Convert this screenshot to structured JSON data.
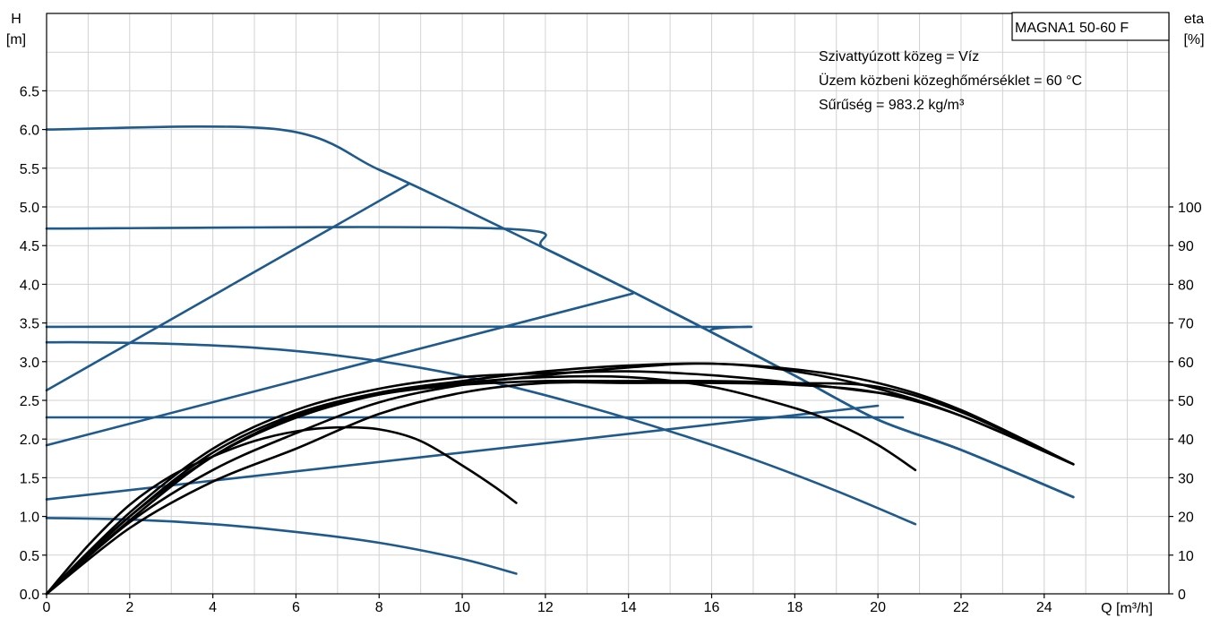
{
  "chart_data": {
    "type": "line",
    "title": "MAGNA1 50-60 F",
    "annotations": [
      "Szivattyúzott közeg = Víz",
      "Üzem közbeni közeghőmérséklet = 60 °C",
      "Sűrűség = 983.2 kg/m³"
    ],
    "x_axis": {
      "label": "Q [m³/h]",
      "range": [
        0,
        27
      ],
      "ticks": [
        0,
        2,
        4,
        6,
        8,
        10,
        12,
        14,
        16,
        18,
        20,
        22,
        24
      ],
      "tick_labels": [
        "0",
        "2",
        "4",
        "6",
        "8",
        "10",
        "12",
        "14",
        "16",
        "18",
        "20",
        "22",
        "24"
      ]
    },
    "y_axis_left": {
      "label_line1": "H",
      "label_line2": "[m]",
      "range": [
        0,
        7.5
      ],
      "ticks": [
        0,
        0.5,
        1,
        1.5,
        2,
        2.5,
        3,
        3.5,
        4,
        4.5,
        5,
        5.5,
        6,
        6.5
      ],
      "tick_labels": [
        "0.0",
        "0.5",
        "1.0",
        "1.5",
        "2.0",
        "2.5",
        "3.0",
        "3.5",
        "4.0",
        "4.5",
        "5.0",
        "5.5",
        "6.0",
        "6.5"
      ]
    },
    "y_axis_right": {
      "label_line1": "eta",
      "label_line2": "[%]",
      "range": [
        0,
        150
      ],
      "ticks": [
        0,
        10,
        20,
        30,
        40,
        50,
        60,
        70,
        80,
        90,
        100
      ],
      "tick_labels": [
        "0",
        "10",
        "20",
        "30",
        "40",
        "50",
        "60",
        "70",
        "80",
        "90",
        "100"
      ]
    },
    "grid": true,
    "colors": {
      "head": "#1f5a8c",
      "efficiency": "#000000",
      "grid": "#d2d2d2"
    },
    "head_series": [
      {
        "axis": "left",
        "x": [
          0,
          5.6,
          8,
          10,
          12,
          14,
          16,
          18,
          20,
          22,
          24.7
        ],
        "y": [
          6.0,
          6.0,
          5.48,
          4.98,
          4.46,
          3.93,
          3.38,
          2.82,
          2.25,
          1.86,
          1.25
        ]
      },
      {
        "axis": "left",
        "x": [
          0,
          10.9,
          12,
          14,
          16,
          18,
          20,
          22,
          24.7
        ],
        "y": [
          4.72,
          4.72,
          4.46,
          3.93,
          3.38,
          2.82,
          2.25,
          1.86,
          1.25
        ]
      },
      {
        "axis": "left",
        "x": [
          0,
          15.8,
          16,
          18,
          20,
          22,
          24.7
        ],
        "y": [
          3.45,
          3.45,
          3.38,
          2.82,
          2.25,
          1.86,
          1.25
        ]
      },
      {
        "axis": "left",
        "x": [
          0,
          20.6
        ],
        "y": [
          2.28,
          2.28
        ]
      },
      {
        "axis": "left",
        "x": [
          0,
          8.7
        ],
        "y": [
          2.63,
          5.29
        ]
      },
      {
        "axis": "left",
        "x": [
          0,
          14.1
        ],
        "y": [
          1.92,
          3.88
        ]
      },
      {
        "axis": "left",
        "x": [
          0,
          20.0
        ],
        "y": [
          1.22,
          2.43
        ]
      },
      {
        "axis": "left",
        "x": [
          0,
          1,
          3,
          5,
          7,
          9,
          11,
          13,
          15,
          17,
          19,
          20.9
        ],
        "y": [
          3.25,
          3.25,
          3.23,
          3.18,
          3.08,
          2.92,
          2.7,
          2.42,
          2.1,
          1.74,
          1.33,
          0.9
        ]
      },
      {
        "axis": "left",
        "x": [
          0,
          2,
          4,
          6,
          8,
          10,
          11.3
        ],
        "y": [
          0.98,
          0.96,
          0.9,
          0.8,
          0.66,
          0.45,
          0.26
        ]
      }
    ],
    "efficiency_series": [
      {
        "axis": "right",
        "x": [
          0,
          1,
          2,
          3,
          4,
          5,
          6,
          7,
          8,
          9,
          10.1,
          10.8,
          11.3
        ],
        "y": [
          0,
          12.5,
          23,
          30.5,
          35.5,
          39.5,
          42,
          43,
          42.5,
          39.5,
          32.5,
          27.5,
          23.5
        ]
      },
      {
        "axis": "right",
        "x": [
          0,
          2,
          4,
          6,
          8,
          10,
          12,
          14,
          16,
          18,
          19,
          20,
          20.9
        ],
        "y": [
          0,
          20,
          35.5,
          45.5,
          51.5,
          54.5,
          56,
          56,
          53.5,
          48,
          44,
          38.5,
          32
        ]
      },
      {
        "axis": "right",
        "x": [
          0,
          2,
          4,
          6,
          8,
          10,
          12,
          14,
          16,
          18,
          20,
          20.6
        ],
        "y": [
          0,
          21,
          37.5,
          47.5,
          53,
          56,
          57,
          57.5,
          56.5,
          54.5,
          52,
          51
        ]
      },
      {
        "axis": "right",
        "x": [
          0,
          2,
          4,
          6,
          8,
          10,
          12,
          14,
          16,
          18,
          20,
          22,
          24.7
        ],
        "y": [
          0,
          20,
          36.5,
          46.5,
          52,
          55,
          57.5,
          59,
          59.5,
          58,
          54.5,
          47.5,
          33.5
        ]
      },
      {
        "axis": "right",
        "x": [
          0,
          2,
          4,
          6,
          8,
          10,
          12,
          14,
          16,
          18,
          20,
          22,
          24.7
        ],
        "y": [
          0,
          19,
          35.5,
          46,
          51.5,
          54,
          55,
          55,
          55,
          54.5,
          53.5,
          47,
          33.5
        ]
      },
      {
        "axis": "right",
        "x": [
          0,
          2,
          4,
          6,
          8,
          10,
          12,
          14,
          16,
          18,
          20,
          22,
          24.7
        ],
        "y": [
          0,
          18.5,
          32,
          41.5,
          49.5,
          54,
          56.5,
          58.5,
          59.5,
          57.5,
          53,
          46,
          33.5
        ]
      },
      {
        "axis": "right",
        "x": [
          0,
          2,
          4,
          6,
          8,
          10,
          12,
          14,
          16,
          18,
          20,
          22,
          24.7
        ],
        "y": [
          0,
          17,
          29,
          37.5,
          46.5,
          52,
          54.5,
          54.5,
          54.5,
          54,
          52,
          46,
          33.5
        ]
      }
    ]
  }
}
